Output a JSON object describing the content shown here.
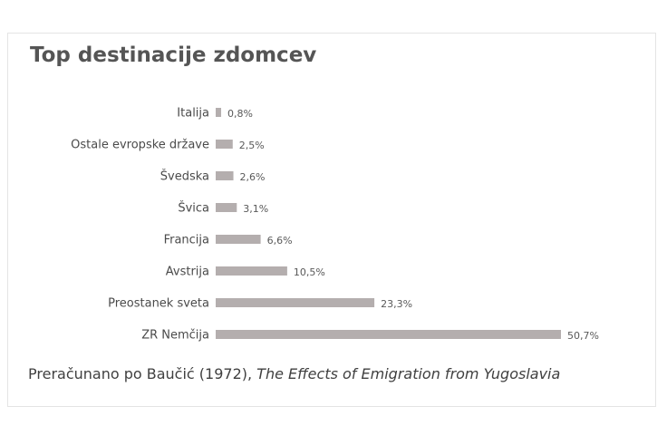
{
  "chart_data": {
    "type": "bar",
    "orientation": "horizontal",
    "title": "Top destinacije zdomcev",
    "categories": [
      "Italija",
      "Ostale evropske države",
      "Švedska",
      "Švica",
      "Francija",
      "Avstrija",
      "Preostanek sveta",
      "ZR Nemčija"
    ],
    "values": [
      0.8,
      2.5,
      2.6,
      3.1,
      6.6,
      10.5,
      23.3,
      50.7
    ],
    "value_labels": [
      "0,8%",
      "2,5%",
      "2,6%",
      "3,1%",
      "6,6%",
      "10,5%",
      "23,3%",
      "50,7%"
    ],
    "unit": "%",
    "xlim": [
      0,
      50.7
    ],
    "grid": false,
    "bar_color": "#b4aeae"
  },
  "caption": {
    "prefix": "Preračunano po Baučić (1972), ",
    "italic": "The Effects of Emigration from Yugoslavia"
  }
}
